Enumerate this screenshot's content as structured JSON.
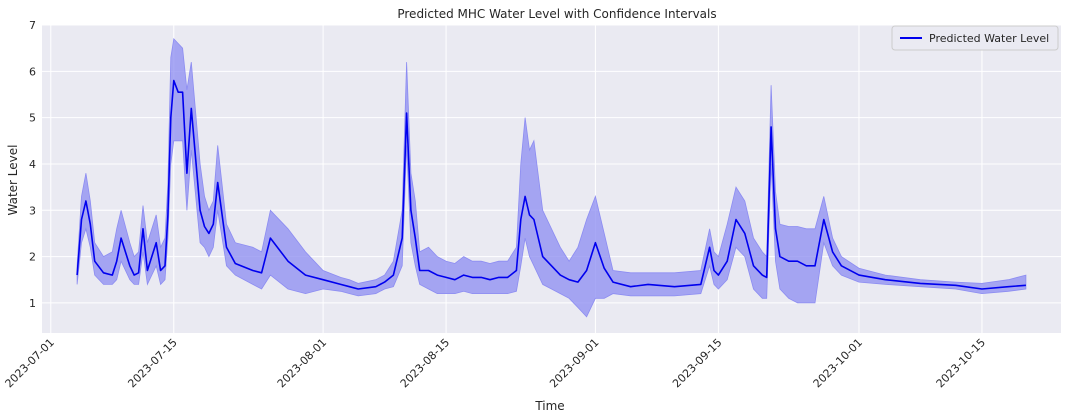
{
  "chart_data": {
    "type": "line",
    "title": "Predicted MHC Water Level with Confidence Intervals",
    "xlabel": "Time",
    "ylabel": "Water Level",
    "x_type": "date",
    "xlim": [
      "2023-06-30",
      "2023-10-24"
    ],
    "ylim": [
      0.35,
      7.0
    ],
    "x_ticks": [
      "2023-07-01",
      "2023-07-15",
      "2023-08-01",
      "2023-08-15",
      "2023-09-01",
      "2023-09-15",
      "2023-10-01",
      "2023-10-15"
    ],
    "y_ticks": [
      1,
      2,
      3,
      4,
      5,
      6,
      7
    ],
    "grid": true,
    "legend": {
      "position": "top-right",
      "entries": [
        "Predicted Water Level"
      ]
    },
    "colors": {
      "line": "#0000ee",
      "band": "#8c8cf2",
      "background": "#eaeaf2",
      "grid": "#ffffff"
    },
    "series": [
      {
        "name": "Predicted Water Level",
        "role": "prediction",
        "x": [
          "2023-07-04",
          "2023-07-04T12:00",
          "2023-07-05",
          "2023-07-05T12:00",
          "2023-07-06",
          "2023-07-07",
          "2023-07-08",
          "2023-07-08T12:00",
          "2023-07-09",
          "2023-07-10",
          "2023-07-10T12:00",
          "2023-07-11",
          "2023-07-11T12:00",
          "2023-07-12",
          "2023-07-13",
          "2023-07-13T12:00",
          "2023-07-14",
          "2023-07-14T08:00",
          "2023-07-14T16:00",
          "2023-07-15",
          "2023-07-15T12:00",
          "2023-07-16",
          "2023-07-16T12:00",
          "2023-07-17",
          "2023-07-18",
          "2023-07-18T12:00",
          "2023-07-19",
          "2023-07-19T12:00",
          "2023-07-20",
          "2023-07-21",
          "2023-07-22",
          "2023-07-24",
          "2023-07-25",
          "2023-07-26",
          "2023-07-28",
          "2023-07-30",
          "2023-08-01",
          "2023-08-03",
          "2023-08-04",
          "2023-08-05",
          "2023-08-07",
          "2023-08-08",
          "2023-08-09",
          "2023-08-10",
          "2023-08-10T12:00",
          "2023-08-11",
          "2023-08-11T12:00",
          "2023-08-12",
          "2023-08-13",
          "2023-08-14",
          "2023-08-15",
          "2023-08-16",
          "2023-08-17",
          "2023-08-18",
          "2023-08-19",
          "2023-08-20",
          "2023-08-21",
          "2023-08-22",
          "2023-08-23",
          "2023-08-23T12:00",
          "2023-08-24",
          "2023-08-24T12:00",
          "2023-08-25",
          "2023-08-26",
          "2023-08-27",
          "2023-08-28",
          "2023-08-29",
          "2023-08-30",
          "2023-08-31",
          "2023-09-01",
          "2023-09-02",
          "2023-09-03",
          "2023-09-05",
          "2023-09-07",
          "2023-09-10",
          "2023-09-13",
          "2023-09-14",
          "2023-09-14T12:00",
          "2023-09-15",
          "2023-09-16",
          "2023-09-17",
          "2023-09-18",
          "2023-09-19",
          "2023-09-20",
          "2023-09-20T12:00",
          "2023-09-21",
          "2023-09-21T12:00",
          "2023-09-22",
          "2023-09-23",
          "2023-09-24",
          "2023-09-25",
          "2023-09-26",
          "2023-09-27",
          "2023-09-28",
          "2023-09-29",
          "2023-10-01",
          "2023-10-04",
          "2023-10-08",
          "2023-10-12",
          "2023-10-15",
          "2023-10-18",
          "2023-10-20"
        ],
        "y": [
          1.6,
          2.8,
          3.2,
          2.7,
          1.9,
          1.65,
          1.6,
          1.9,
          2.4,
          1.8,
          1.6,
          1.65,
          2.6,
          1.7,
          2.3,
          1.7,
          1.8,
          2.9,
          5.0,
          5.8,
          5.55,
          5.55,
          3.8,
          5.2,
          3.0,
          2.65,
          2.5,
          2.7,
          3.6,
          2.2,
          1.85,
          1.7,
          1.65,
          2.4,
          1.9,
          1.6,
          1.5,
          1.4,
          1.35,
          1.3,
          1.35,
          1.45,
          1.6,
          2.4,
          5.1,
          3.0,
          2.4,
          1.7,
          1.7,
          1.6,
          1.55,
          1.5,
          1.6,
          1.55,
          1.55,
          1.5,
          1.55,
          1.55,
          1.7,
          2.8,
          3.3,
          2.9,
          2.8,
          2.0,
          1.8,
          1.6,
          1.5,
          1.45,
          1.7,
          2.3,
          1.75,
          1.45,
          1.35,
          1.4,
          1.35,
          1.4,
          2.2,
          1.7,
          1.6,
          1.9,
          2.8,
          2.5,
          1.8,
          1.6,
          1.55,
          4.8,
          2.6,
          2.0,
          1.9,
          1.9,
          1.8,
          1.8,
          2.8,
          2.1,
          1.8,
          1.6,
          1.5,
          1.42,
          1.38,
          1.3,
          1.35,
          1.38
        ]
      },
      {
        "name": "",
        "role": "confidence-interval-upper",
        "x": [
          "2023-07-04",
          "2023-07-04T12:00",
          "2023-07-05",
          "2023-07-05T12:00",
          "2023-07-06",
          "2023-07-07",
          "2023-07-08",
          "2023-07-08T12:00",
          "2023-07-09",
          "2023-07-10",
          "2023-07-10T12:00",
          "2023-07-11",
          "2023-07-11T12:00",
          "2023-07-12",
          "2023-07-13",
          "2023-07-13T12:00",
          "2023-07-14",
          "2023-07-14T08:00",
          "2023-07-14T16:00",
          "2023-07-15",
          "2023-07-15T12:00",
          "2023-07-16",
          "2023-07-16T12:00",
          "2023-07-17",
          "2023-07-18",
          "2023-07-18T12:00",
          "2023-07-19",
          "2023-07-19T12:00",
          "2023-07-20",
          "2023-07-21",
          "2023-07-22",
          "2023-07-24",
          "2023-07-25",
          "2023-07-26",
          "2023-07-28",
          "2023-07-30",
          "2023-08-01",
          "2023-08-03",
          "2023-08-04",
          "2023-08-05",
          "2023-08-07",
          "2023-08-08",
          "2023-08-09",
          "2023-08-10",
          "2023-08-10T12:00",
          "2023-08-11",
          "2023-08-11T12:00",
          "2023-08-12",
          "2023-08-13",
          "2023-08-14",
          "2023-08-15",
          "2023-08-16",
          "2023-08-17",
          "2023-08-18",
          "2023-08-19",
          "2023-08-20",
          "2023-08-21",
          "2023-08-22",
          "2023-08-23",
          "2023-08-23T12:00",
          "2023-08-24",
          "2023-08-24T12:00",
          "2023-08-25",
          "2023-08-26",
          "2023-08-27",
          "2023-08-28",
          "2023-08-29",
          "2023-08-30",
          "2023-08-31",
          "2023-09-01",
          "2023-09-02",
          "2023-09-03",
          "2023-09-05",
          "2023-09-07",
          "2023-09-10",
          "2023-09-13",
          "2023-09-14",
          "2023-09-14T12:00",
          "2023-09-15",
          "2023-09-16",
          "2023-09-17",
          "2023-09-18",
          "2023-09-19",
          "2023-09-20",
          "2023-09-20T12:00",
          "2023-09-21",
          "2023-09-21T12:00",
          "2023-09-22",
          "2023-09-23",
          "2023-09-24",
          "2023-09-25",
          "2023-09-26",
          "2023-09-27",
          "2023-09-28",
          "2023-09-29",
          "2023-10-01",
          "2023-10-04",
          "2023-10-08",
          "2023-10-12",
          "2023-10-15",
          "2023-10-18",
          "2023-10-20"
        ],
        "y": [
          1.8,
          3.3,
          3.8,
          3.2,
          2.3,
          2.0,
          2.1,
          2.6,
          3.0,
          2.3,
          2.0,
          2.1,
          3.1,
          2.3,
          2.9,
          2.2,
          2.4,
          3.6,
          6.3,
          6.7,
          6.6,
          6.5,
          5.6,
          6.2,
          4.0,
          3.3,
          3.0,
          3.2,
          4.4,
          2.7,
          2.3,
          2.2,
          2.1,
          3.0,
          2.6,
          2.1,
          1.7,
          1.55,
          1.5,
          1.42,
          1.5,
          1.6,
          1.9,
          3.0,
          6.2,
          3.8,
          3.2,
          2.1,
          2.2,
          2.0,
          1.9,
          1.85,
          2.0,
          1.9,
          1.9,
          1.85,
          1.9,
          1.9,
          2.2,
          4.0,
          5.0,
          4.3,
          4.5,
          3.0,
          2.6,
          2.2,
          1.9,
          2.2,
          2.8,
          3.3,
          2.5,
          1.7,
          1.65,
          1.65,
          1.65,
          1.7,
          2.6,
          2.1,
          2.0,
          2.7,
          3.5,
          3.2,
          2.4,
          2.1,
          2.0,
          5.7,
          3.4,
          2.7,
          2.65,
          2.65,
          2.6,
          2.6,
          3.3,
          2.4,
          2.0,
          1.75,
          1.6,
          1.5,
          1.45,
          1.42,
          1.5,
          1.6
        ]
      },
      {
        "name": "",
        "role": "confidence-interval-lower",
        "x": [
          "2023-07-04",
          "2023-07-04T12:00",
          "2023-07-05",
          "2023-07-05T12:00",
          "2023-07-06",
          "2023-07-07",
          "2023-07-08",
          "2023-07-08T12:00",
          "2023-07-09",
          "2023-07-10",
          "2023-07-10T12:00",
          "2023-07-11",
          "2023-07-11T12:00",
          "2023-07-12",
          "2023-07-13",
          "2023-07-13T12:00",
          "2023-07-14",
          "2023-07-14T08:00",
          "2023-07-14T16:00",
          "2023-07-15",
          "2023-07-15T12:00",
          "2023-07-16",
          "2023-07-16T12:00",
          "2023-07-17",
          "2023-07-18",
          "2023-07-18T12:00",
          "2023-07-19",
          "2023-07-19T12:00",
          "2023-07-20",
          "2023-07-21",
          "2023-07-22",
          "2023-07-24",
          "2023-07-25",
          "2023-07-26",
          "2023-07-28",
          "2023-07-30",
          "2023-08-01",
          "2023-08-03",
          "2023-08-04",
          "2023-08-05",
          "2023-08-07",
          "2023-08-08",
          "2023-08-09",
          "2023-08-10",
          "2023-08-10T12:00",
          "2023-08-11",
          "2023-08-11T12:00",
          "2023-08-12",
          "2023-08-13",
          "2023-08-14",
          "2023-08-15",
          "2023-08-16",
          "2023-08-17",
          "2023-08-18",
          "2023-08-19",
          "2023-08-20",
          "2023-08-21",
          "2023-08-22",
          "2023-08-23",
          "2023-08-23T12:00",
          "2023-08-24",
          "2023-08-24T12:00",
          "2023-08-25",
          "2023-08-26",
          "2023-08-27",
          "2023-08-28",
          "2023-08-29",
          "2023-08-30",
          "2023-08-31",
          "2023-09-01",
          "2023-09-02",
          "2023-09-03",
          "2023-09-05",
          "2023-09-07",
          "2023-09-10",
          "2023-09-13",
          "2023-09-14",
          "2023-09-14T12:00",
          "2023-09-15",
          "2023-09-16",
          "2023-09-17",
          "2023-09-18",
          "2023-09-19",
          "2023-09-20",
          "2023-09-20T12:00",
          "2023-09-21",
          "2023-09-21T12:00",
          "2023-09-22",
          "2023-09-23",
          "2023-09-24",
          "2023-09-25",
          "2023-09-26",
          "2023-09-27",
          "2023-09-28",
          "2023-09-29",
          "2023-10-01",
          "2023-10-04",
          "2023-10-08",
          "2023-10-12",
          "2023-10-15",
          "2023-10-18",
          "2023-10-20"
        ],
        "y": [
          1.4,
          2.3,
          2.6,
          2.2,
          1.6,
          1.4,
          1.4,
          1.5,
          1.9,
          1.5,
          1.4,
          1.4,
          2.1,
          1.4,
          1.8,
          1.4,
          1.5,
          2.4,
          4.0,
          4.5,
          4.5,
          4.5,
          3.0,
          4.3,
          2.3,
          2.2,
          2.0,
          2.2,
          3.0,
          1.8,
          1.6,
          1.4,
          1.3,
          1.6,
          1.3,
          1.2,
          1.3,
          1.25,
          1.2,
          1.15,
          1.2,
          1.3,
          1.35,
          1.8,
          4.4,
          2.3,
          1.8,
          1.4,
          1.3,
          1.2,
          1.2,
          1.2,
          1.25,
          1.2,
          1.2,
          1.2,
          1.2,
          1.2,
          1.25,
          1.8,
          2.4,
          2.0,
          1.8,
          1.4,
          1.3,
          1.2,
          1.1,
          0.9,
          0.7,
          1.1,
          1.1,
          1.2,
          1.15,
          1.15,
          1.15,
          1.2,
          1.8,
          1.4,
          1.3,
          1.5,
          2.2,
          2.0,
          1.3,
          1.1,
          1.1,
          4.0,
          1.9,
          1.3,
          1.1,
          1.0,
          1.0,
          1.0,
          2.3,
          1.8,
          1.6,
          1.45,
          1.4,
          1.35,
          1.3,
          1.2,
          1.25,
          1.3
        ]
      }
    ]
  }
}
